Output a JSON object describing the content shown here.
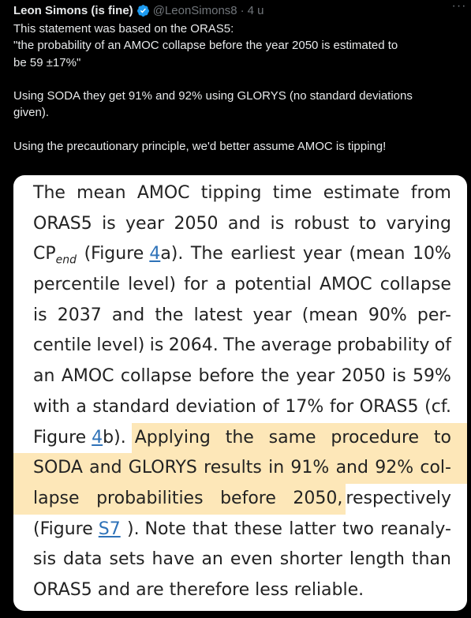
{
  "tweet": {
    "author_name": "Leon Simons (is fine)",
    "handle": "@LeonSimons8",
    "separator": "·",
    "time": "4 u",
    "more_label": "···",
    "body_lines": [
      "This statement was based on the ORAS5:",
      "\"the probability of an AMOC collapse before the year 2050 is estimated to",
      "be 59 ±17%\"",
      "Using SODA they get 91% and 92% using GLORYS (no standard deviations",
      "given).",
      "Using the precautionary principle, we'd better assume AMOC is tipping!"
    ]
  },
  "excerpt": {
    "l1": [
      "The",
      "mean",
      "AMOC",
      "tipping",
      "time",
      "estimate",
      "from"
    ],
    "l2": [
      "ORAS5",
      "is",
      "year",
      "2050",
      "and",
      "is",
      "robust",
      "to",
      "varying"
    ],
    "l3": {
      "cp": "CP",
      "sub": "end",
      "fig_open": "(Figure ",
      "fig_ref": "4",
      "fig_rest": "a).",
      "rest": [
        "The",
        "earliest",
        "year",
        "(mean",
        "10%"
      ]
    },
    "l4": [
      "percentile",
      "level)",
      "for",
      "a",
      "potential",
      "AMOC",
      "collapse"
    ],
    "l5": [
      "is",
      "2037",
      "and",
      "the",
      "latest",
      "year",
      "(mean",
      "90%",
      "per-"
    ],
    "l6": [
      "centile",
      "level)",
      "is",
      "2064.",
      "The",
      "average",
      "probability",
      "of"
    ],
    "l7": [
      "an",
      "AMOC",
      "collapse",
      "before",
      "the",
      "year",
      "2050",
      "is",
      "59%"
    ],
    "l8": [
      "with",
      "a",
      "standard",
      "deviation",
      "of",
      "17%",
      "for",
      "ORAS5",
      "(cf."
    ],
    "l9": {
      "fig": "Figure ",
      "fig_ref": "4",
      "fig_rest": "b).",
      "hl": [
        "Applying",
        "the",
        "same",
        "procedure",
        "to"
      ]
    },
    "l10": [
      "SODA",
      "and",
      "GLORYS",
      "results",
      "in",
      "91%",
      "and",
      "92%",
      "col-"
    ],
    "l11": {
      "hl": [
        "lapse",
        "probabilities",
        "before",
        "2050,"
      ],
      "rest": "respectively"
    },
    "l12": {
      "open": "(Figure ",
      "fig_ref": "S7",
      "rest": [
        "). Note",
        "that",
        "these",
        "latter",
        "two",
        "reanaly-"
      ]
    },
    "l13": [
      "sis",
      "data",
      "sets",
      "have",
      "an",
      "even",
      "shorter",
      "length",
      "than"
    ],
    "l14": "ORAS5 and are therefore less reliable."
  },
  "colors": {
    "background": "#000000",
    "text": "#e7e9ea",
    "muted": "#71767b",
    "verified": "#1d9bf0",
    "highlight": "#fde7b8",
    "link": "#2e72b8"
  }
}
